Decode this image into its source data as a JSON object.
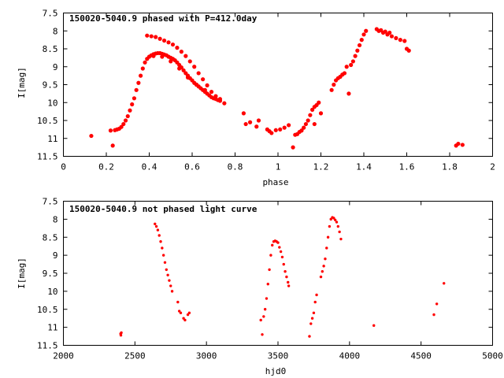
{
  "chart_data": [
    {
      "type": "scatter",
      "title": "150020-5040.9 phased with P=412.0day",
      "xlabel": "phase",
      "ylabel": "I[mag]",
      "xlim": [
        0,
        2
      ],
      "ylim": [
        11.5,
        7.5
      ],
      "y_inverted": true,
      "xticks": [
        0,
        0.2,
        0.4,
        0.6,
        0.8,
        1,
        1.2,
        1.4,
        1.6,
        1.8,
        2
      ],
      "xtick_labels": [
        "0",
        "0.2",
        "0.4",
        "0.6",
        "0.8",
        "1",
        "1.2",
        "1.4",
        "1.6",
        "1.8",
        "2"
      ],
      "yticks": [
        7.5,
        8,
        8.5,
        9,
        9.5,
        10,
        10.5,
        11,
        11.5
      ],
      "ytick_labels": [
        "7.5",
        "8",
        "8.5",
        "9",
        "9.5",
        "10",
        "10.5",
        "11",
        "11.5"
      ],
      "grid": false,
      "marker_color": "#ff0000",
      "points": [
        [
          0.13,
          10.93
        ],
        [
          0.22,
          10.78
        ],
        [
          0.23,
          11.2
        ],
        [
          0.24,
          10.77
        ],
        [
          0.25,
          10.75
        ],
        [
          0.26,
          10.73
        ],
        [
          0.27,
          10.68
        ],
        [
          0.28,
          10.6
        ],
        [
          0.29,
          10.5
        ],
        [
          0.3,
          10.38
        ],
        [
          0.31,
          10.22
        ],
        [
          0.32,
          10.05
        ],
        [
          0.33,
          9.88
        ],
        [
          0.34,
          9.65
        ],
        [
          0.35,
          9.45
        ],
        [
          0.36,
          9.25
        ],
        [
          0.37,
          9.05
        ],
        [
          0.38,
          8.88
        ],
        [
          0.39,
          8.78
        ],
        [
          0.4,
          8.72
        ],
        [
          0.41,
          8.68
        ],
        [
          0.42,
          8.65
        ],
        [
          0.43,
          8.63
        ],
        [
          0.44,
          8.62
        ],
        [
          0.45,
          8.62
        ],
        [
          0.46,
          8.64
        ],
        [
          0.47,
          8.66
        ],
        [
          0.48,
          8.68
        ],
        [
          0.49,
          8.72
        ],
        [
          0.5,
          8.75
        ],
        [
          0.51,
          8.78
        ],
        [
          0.52,
          8.82
        ],
        [
          0.53,
          8.88
        ],
        [
          0.54,
          8.95
        ],
        [
          0.55,
          9.02
        ],
        [
          0.56,
          9.1
        ],
        [
          0.57,
          9.18
        ],
        [
          0.58,
          9.25
        ],
        [
          0.59,
          9.32
        ],
        [
          0.6,
          9.38
        ],
        [
          0.61,
          9.45
        ],
        [
          0.62,
          9.5
        ],
        [
          0.63,
          9.55
        ],
        [
          0.64,
          9.6
        ],
        [
          0.65,
          9.65
        ],
        [
          0.66,
          9.7
        ],
        [
          0.67,
          9.75
        ],
        [
          0.68,
          9.8
        ],
        [
          0.69,
          9.85
        ],
        [
          0.7,
          9.88
        ],
        [
          0.71,
          9.9
        ],
        [
          0.72,
          9.93
        ],
        [
          0.73,
          9.95
        ],
        [
          0.75,
          10.02
        ],
        [
          0.39,
          8.13
        ],
        [
          0.41,
          8.15
        ],
        [
          0.43,
          8.17
        ],
        [
          0.45,
          8.22
        ],
        [
          0.47,
          8.27
        ],
        [
          0.49,
          8.32
        ],
        [
          0.51,
          8.38
        ],
        [
          0.53,
          8.47
        ],
        [
          0.55,
          8.58
        ],
        [
          0.57,
          8.7
        ],
        [
          0.59,
          8.85
        ],
        [
          0.61,
          9.0
        ],
        [
          0.63,
          9.18
        ],
        [
          0.65,
          9.35
        ],
        [
          0.67,
          9.52
        ],
        [
          0.69,
          9.7
        ],
        [
          0.71,
          9.82
        ],
        [
          0.73,
          9.9
        ],
        [
          0.42,
          8.7
        ],
        [
          0.46,
          8.72
        ],
        [
          0.5,
          8.85
        ],
        [
          0.54,
          9.05
        ],
        [
          0.58,
          9.3
        ],
        [
          0.62,
          9.5
        ],
        [
          0.66,
          9.65
        ],
        [
          0.84,
          10.3
        ],
        [
          0.85,
          10.6
        ],
        [
          0.87,
          10.55
        ],
        [
          0.9,
          10.67
        ],
        [
          0.91,
          10.5
        ],
        [
          0.95,
          10.75
        ],
        [
          0.96,
          10.8
        ],
        [
          0.97,
          10.85
        ],
        [
          0.99,
          10.77
        ],
        [
          1.01,
          10.75
        ],
        [
          1.03,
          10.7
        ],
        [
          1.05,
          10.63
        ],
        [
          1.07,
          11.25
        ],
        [
          1.08,
          10.9
        ],
        [
          1.09,
          10.88
        ],
        [
          1.1,
          10.82
        ],
        [
          1.11,
          10.78
        ],
        [
          1.12,
          10.7
        ],
        [
          1.13,
          10.6
        ],
        [
          1.14,
          10.5
        ],
        [
          1.15,
          10.35
        ],
        [
          1.16,
          10.2
        ],
        [
          1.17,
          10.12
        ],
        [
          1.18,
          10.07
        ],
        [
          1.19,
          10.0
        ],
        [
          1.17,
          10.6
        ],
        [
          1.2,
          10.3
        ],
        [
          1.25,
          9.65
        ],
        [
          1.26,
          9.5
        ],
        [
          1.27,
          9.38
        ],
        [
          1.28,
          9.32
        ],
        [
          1.29,
          9.28
        ],
        [
          1.3,
          9.22
        ],
        [
          1.31,
          9.18
        ],
        [
          1.32,
          9.0
        ],
        [
          1.33,
          9.75
        ],
        [
          1.34,
          8.95
        ],
        [
          1.35,
          8.85
        ],
        [
          1.36,
          8.7
        ],
        [
          1.37,
          8.55
        ],
        [
          1.38,
          8.4
        ],
        [
          1.39,
          8.25
        ],
        [
          1.4,
          8.1
        ],
        [
          1.41,
          8.0
        ],
        [
          1.46,
          7.95
        ],
        [
          1.47,
          8.0
        ],
        [
          1.48,
          7.98
        ],
        [
          1.49,
          8.05
        ],
        [
          1.5,
          8.02
        ],
        [
          1.51,
          8.1
        ],
        [
          1.52,
          8.05
        ],
        [
          1.53,
          8.15
        ],
        [
          1.55,
          8.2
        ],
        [
          1.57,
          8.25
        ],
        [
          1.59,
          8.28
        ],
        [
          1.6,
          8.5
        ],
        [
          1.61,
          8.55
        ],
        [
          1.83,
          11.2
        ],
        [
          1.84,
          11.15
        ],
        [
          1.86,
          11.18
        ]
      ]
    },
    {
      "type": "scatter",
      "title": "150020-5040.9 not phased light curve",
      "xlabel": "hjd0",
      "ylabel": "I[mag]",
      "xlim": [
        2000,
        5000
      ],
      "ylim": [
        11.5,
        7.5
      ],
      "y_inverted": true,
      "xticks": [
        2000,
        2500,
        3000,
        3500,
        4000,
        4500,
        5000
      ],
      "xtick_labels": [
        "2000",
        "2500",
        "3000",
        "3500",
        "4000",
        "4500",
        "5000"
      ],
      "yticks": [
        7.5,
        8,
        8.5,
        9,
        9.5,
        10,
        10.5,
        11,
        11.5
      ],
      "ytick_labels": [
        "7.5",
        "8",
        "8.5",
        "9",
        "9.5",
        "10",
        "10.5",
        "11",
        "11.5"
      ],
      "grid": false,
      "marker_color": "#ff0000",
      "points": [
        [
          2400,
          11.18
        ],
        [
          2402,
          11.22
        ],
        [
          2405,
          11.15
        ],
        [
          2640,
          8.13
        ],
        [
          2650,
          8.2
        ],
        [
          2660,
          8.3
        ],
        [
          2670,
          8.45
        ],
        [
          2680,
          8.62
        ],
        [
          2690,
          8.8
        ],
        [
          2700,
          9.0
        ],
        [
          2710,
          9.2
        ],
        [
          2720,
          9.4
        ],
        [
          2730,
          9.55
        ],
        [
          2740,
          9.7
        ],
        [
          2750,
          9.85
        ],
        [
          2760,
          10.0
        ],
        [
          2800,
          10.3
        ],
        [
          2810,
          10.55
        ],
        [
          2820,
          10.6
        ],
        [
          2840,
          10.75
        ],
        [
          2850,
          10.8
        ],
        [
          2870,
          10.65
        ],
        [
          2880,
          10.6
        ],
        [
          3380,
          10.8
        ],
        [
          3390,
          11.2
        ],
        [
          3400,
          10.7
        ],
        [
          3410,
          10.5
        ],
        [
          3420,
          10.2
        ],
        [
          3430,
          9.8
        ],
        [
          3440,
          9.4
        ],
        [
          3450,
          9.0
        ],
        [
          3460,
          8.72
        ],
        [
          3470,
          8.62
        ],
        [
          3480,
          8.6
        ],
        [
          3490,
          8.62
        ],
        [
          3500,
          8.65
        ],
        [
          3510,
          8.78
        ],
        [
          3520,
          8.9
        ],
        [
          3530,
          9.05
        ],
        [
          3540,
          9.25
        ],
        [
          3550,
          9.45
        ],
        [
          3560,
          9.6
        ],
        [
          3570,
          9.75
        ],
        [
          3575,
          9.85
        ],
        [
          3720,
          11.25
        ],
        [
          3730,
          10.9
        ],
        [
          3740,
          10.75
        ],
        [
          3750,
          10.6
        ],
        [
          3760,
          10.3
        ],
        [
          3770,
          10.1
        ],
        [
          3800,
          9.6
        ],
        [
          3810,
          9.45
        ],
        [
          3820,
          9.3
        ],
        [
          3830,
          9.1
        ],
        [
          3840,
          8.8
        ],
        [
          3850,
          8.5
        ],
        [
          3860,
          8.2
        ],
        [
          3870,
          8.0
        ],
        [
          3880,
          7.95
        ],
        [
          3890,
          7.97
        ],
        [
          3900,
          8.02
        ],
        [
          3910,
          8.08
        ],
        [
          3920,
          8.2
        ],
        [
          3930,
          8.35
        ],
        [
          3940,
          8.55
        ],
        [
          4170,
          10.95
        ],
        [
          4590,
          10.65
        ],
        [
          4610,
          10.35
        ],
        [
          4660,
          9.78
        ]
      ]
    }
  ]
}
